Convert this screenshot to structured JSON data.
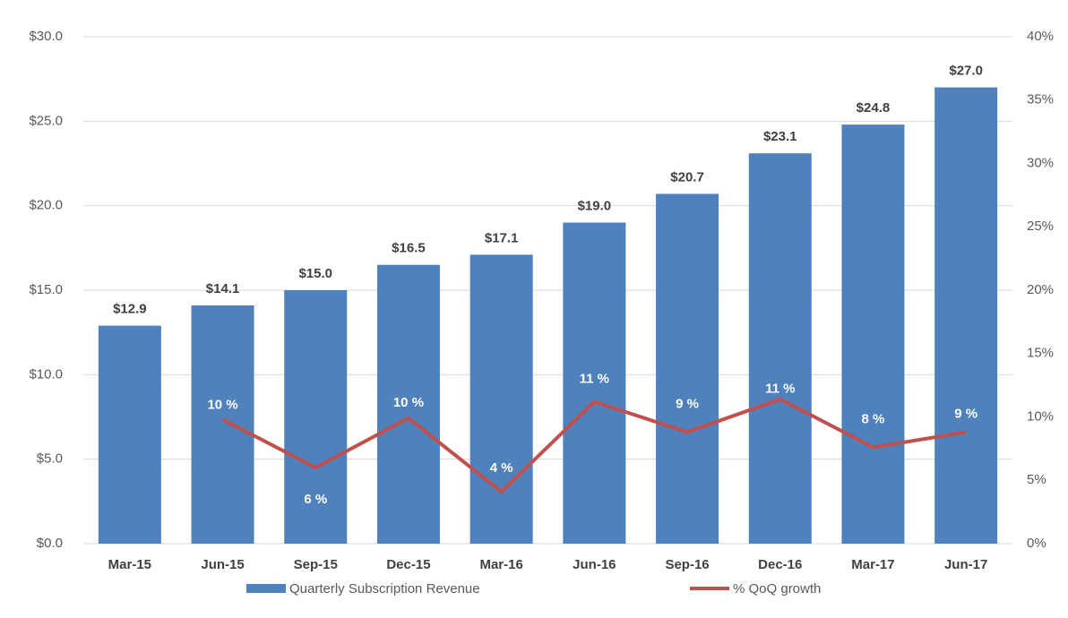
{
  "chart_data": {
    "type": "bar-line",
    "categories": [
      "Mar-15",
      "Jun-15",
      "Sep-15",
      "Dec-15",
      "Mar-16",
      "Jun-16",
      "Sep-16",
      "Dec-16",
      "Mar-17",
      "Jun-17"
    ],
    "series": [
      {
        "name": "Quarterly Subscription Revenue",
        "type": "bar",
        "color": "#4f81bd",
        "values": [
          12.9,
          14.1,
          15.0,
          16.5,
          17.1,
          19.0,
          20.7,
          23.1,
          24.8,
          27.0
        ],
        "value_labels": [
          "$12.9",
          "$14.1",
          "$15.0",
          "$16.5",
          "$17.1",
          "$19.0",
          "$20.7",
          "$23.1",
          "$24.8",
          "$27.0"
        ]
      },
      {
        "name": "% QoQ growth",
        "type": "line",
        "axis": "y2",
        "color": "#c0504d",
        "values": [
          null,
          9.8,
          6.0,
          9.9,
          4.1,
          11.2,
          8.8,
          11.4,
          7.6,
          8.8
        ],
        "value_labels": [
          null,
          "10 %",
          "6 %",
          "10 %",
          "4 %",
          "11 %",
          "9 %",
          "11 %",
          "8 %",
          "9 %"
        ]
      }
    ],
    "ylim": [
      0,
      30
    ],
    "yticks": [
      {
        "value": 0,
        "label": "$0.0"
      },
      {
        "value": 5,
        "label": "$5.0"
      },
      {
        "value": 10,
        "label": "$10.0"
      },
      {
        "value": 15,
        "label": "$15.0"
      },
      {
        "value": 20,
        "label": "$20.0"
      },
      {
        "value": 25,
        "label": "$25.0"
      },
      {
        "value": 30,
        "label": "$30.0"
      }
    ],
    "y2lim": [
      0,
      40
    ],
    "y2ticks": [
      {
        "value": 0,
        "label": "0%"
      },
      {
        "value": 5,
        "label": "5%"
      },
      {
        "value": 10,
        "label": "10%"
      },
      {
        "value": 15,
        "label": "15%"
      },
      {
        "value": 20,
        "label": "20%"
      },
      {
        "value": 25,
        "label": "25%"
      },
      {
        "value": 30,
        "label": "30%"
      },
      {
        "value": 35,
        "label": "35%"
      },
      {
        "value": 40,
        "label": "40%"
      }
    ],
    "grid": true,
    "legend": "bottom"
  }
}
